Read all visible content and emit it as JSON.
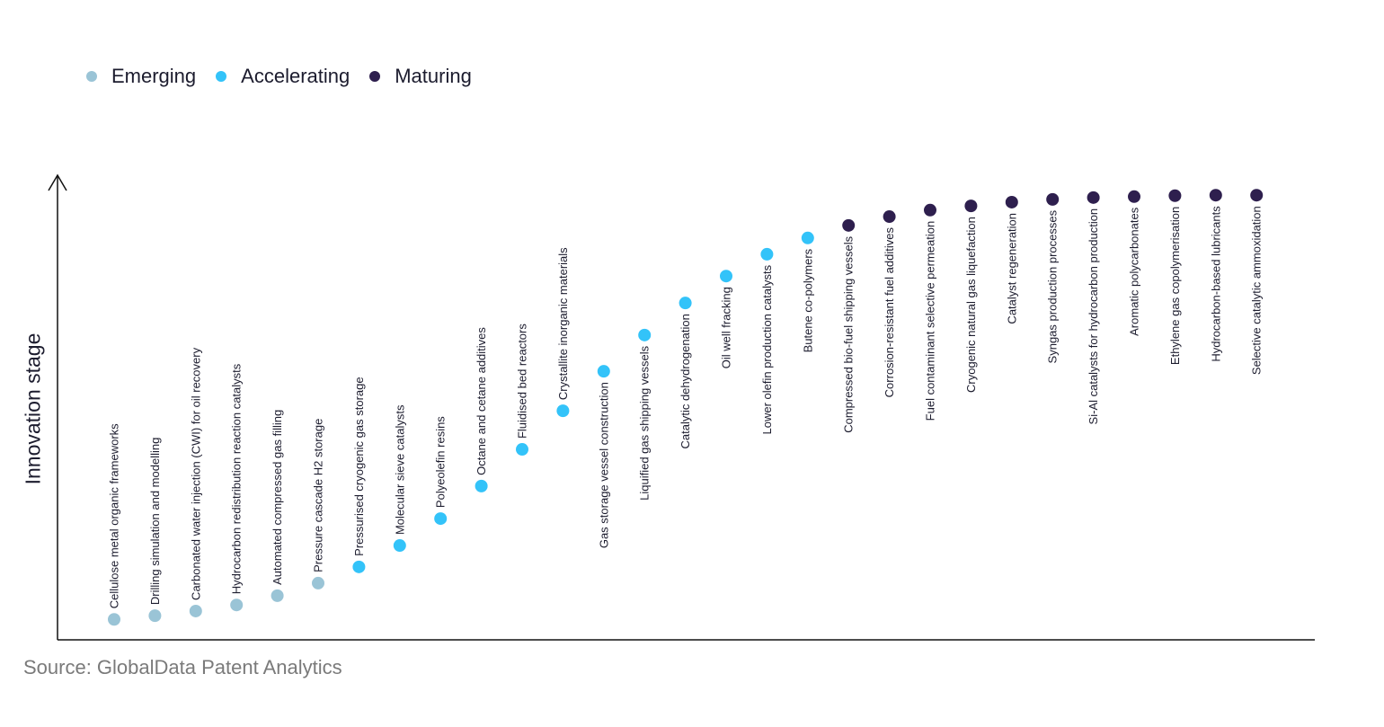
{
  "colors": {
    "Emerging": "#9ac4d6",
    "Accelerating": "#33c3f9",
    "Maturing": "#2e1f4e",
    "axis": "#111111"
  },
  "legend": [
    {
      "label": "Emerging",
      "color": "#9ac4d6"
    },
    {
      "label": "Accelerating",
      "color": "#33c3f9"
    },
    {
      "label": "Maturing",
      "color": "#2e1f4e"
    }
  ],
  "source": "Source: GlobalData Patent Analytics",
  "chart_data": {
    "type": "scatter",
    "title": "",
    "xlabel": "",
    "ylabel": "Innovation stage",
    "ylim": [
      0,
      100
    ],
    "grid": false,
    "legend_position": "top-left",
    "points": [
      {
        "label": "Cellulose metal organic frameworks",
        "stage": "Emerging",
        "y": 4.4
      },
      {
        "label": "Drilling simulation and modelling",
        "stage": "Emerging",
        "y": 5.2
      },
      {
        "label": "Carbonated water injection (CWI) for oil recovery",
        "stage": "Emerging",
        "y": 6.2
      },
      {
        "label": "Hydrocarbon redistribution reaction catalysts",
        "stage": "Emerging",
        "y": 7.5
      },
      {
        "label": "Automated compressed gas filling",
        "stage": "Emerging",
        "y": 9.5
      },
      {
        "label": "Pressure cascade H2 storage",
        "stage": "Emerging",
        "y": 12.2
      },
      {
        "label": "Pressurised cryogenic gas storage",
        "stage": "Accelerating",
        "y": 15.7
      },
      {
        "label": "Molecular sieve catalysts",
        "stage": "Accelerating",
        "y": 20.3
      },
      {
        "label": "Polyeolefin resins",
        "stage": "Accelerating",
        "y": 26.1
      },
      {
        "label": "Octane and cetane additives",
        "stage": "Accelerating",
        "y": 33.1
      },
      {
        "label": "Fluidised bed reactors",
        "stage": "Accelerating",
        "y": 41.0
      },
      {
        "label": "Crystallite inorganic materials",
        "stage": "Accelerating",
        "y": 49.3
      },
      {
        "label": "Gas storage vessel construction",
        "stage": "Accelerating",
        "y": 57.8
      },
      {
        "label": "Liquified gas shipping vessels",
        "stage": "Accelerating",
        "y": 65.6
      },
      {
        "label": "Catalytic dehydrogenation",
        "stage": "Accelerating",
        "y": 72.5
      },
      {
        "label": "Oil well fracking",
        "stage": "Accelerating",
        "y": 78.3
      },
      {
        "label": "Lower olefin production catalysts",
        "stage": "Accelerating",
        "y": 83.0
      },
      {
        "label": "Butene co-polymers",
        "stage": "Accelerating",
        "y": 86.5
      },
      {
        "label": "Compressed bio-fuel shipping vessels",
        "stage": "Maturing",
        "y": 89.2
      },
      {
        "label": "Corrosion-resistant fuel additives",
        "stage": "Maturing",
        "y": 91.1
      },
      {
        "label": "Fuel contaminant selective permeation",
        "stage": "Maturing",
        "y": 92.5
      },
      {
        "label": "Cryogenic natural gas liquefaction",
        "stage": "Maturing",
        "y": 93.4
      },
      {
        "label": "Catalyst regeneration",
        "stage": "Maturing",
        "y": 94.2
      },
      {
        "label": "Syngas production processes",
        "stage": "Maturing",
        "y": 94.8
      },
      {
        "label": "Si-Al catalysts for hydrocarbon production",
        "stage": "Maturing",
        "y": 95.2
      },
      {
        "label": "Aromatic polycarbonates",
        "stage": "Maturing",
        "y": 95.4
      },
      {
        "label": "Ethylene gas copolymerisation",
        "stage": "Maturing",
        "y": 95.6
      },
      {
        "label": "Hydrocarbon-based lubricants",
        "stage": "Maturing",
        "y": 95.7
      },
      {
        "label": "Selective catalytic ammoxidation",
        "stage": "Maturing",
        "y": 95.7
      }
    ]
  }
}
